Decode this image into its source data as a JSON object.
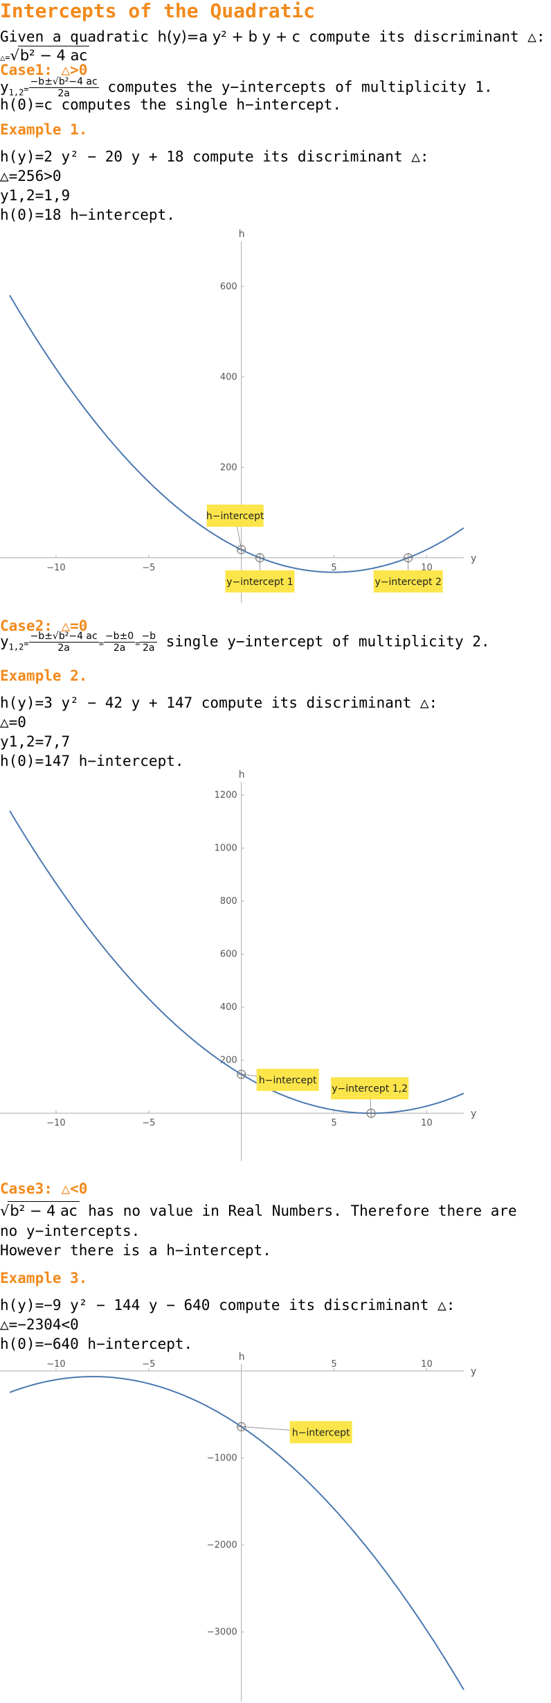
{
  "title": "Intercepts of the Quadratic",
  "intro": {
    "l1_a": "Given a quadratic ",
    "l1_eq": "h(y)=a y² + b y + c",
    "l1_b": " compute its discriminant △:",
    "disc_prefix": "△=",
    "disc_rad": "b² − 4 ac"
  },
  "case1": {
    "head": "Case1: △>0",
    "y12": "y",
    "sub": "1,2",
    "eq": "=",
    "num": "−b±√b²−4 ac",
    "den": "2a",
    "after": " computes the y−intercepts of multiplicity 1.",
    "h0": "h(0)=c computes the single h−intercept."
  },
  "ex1": {
    "head": "Example 1.",
    "l1": "h(y)=2 y² − 20 y + 18 compute its discriminant △:",
    "l2": "△=256>0",
    "l3": "y1,2=1,9",
    "l4": "h(0)=18  h−intercept."
  },
  "case2": {
    "head": "Case2: △=0",
    "num": "−b±√b²−4 ac",
    "den": "2a",
    "num2": "−b±0",
    "den2": "2a",
    "num3": "−b",
    "den3": "2a",
    "after": " single y−intercept of multiplicity 2."
  },
  "ex2": {
    "head": "Example 2.",
    "l1": "h(y)=3 y² − 42 y + 147 compute its discriminant △:",
    "l2": "△=0",
    "l3": "y1,2=7,7",
    "l4": "h(0)=147  h−intercept."
  },
  "case3": {
    "head": "Case3: △<0",
    "rad": "b² − 4 ac",
    "l1_after": " has no value in Real Numbers. Therefore there are",
    "l2": "no y−intercepts.",
    "l3": "However there is a h−intercept."
  },
  "ex3": {
    "head": "Example 3.",
    "l1": "h(y)=−9 y² − 144 y − 640 compute its discriminant △:",
    "l2": "△=−2304<0",
    "l3": "h(0)=−640  h−intercept."
  },
  "colors": {
    "accent": "#f28a1c",
    "curve": "#4a78b0",
    "callout": "#fbe54a"
  },
  "chart_data": [
    {
      "type": "line",
      "function": "h(y)=2y^2-20y+18",
      "coefficients": [
        2,
        -20,
        18
      ],
      "xlabel": "y",
      "ylabel": "h",
      "xlim": [
        -12.5,
        12
      ],
      "ylim": [
        -100,
        700
      ],
      "xticks": [
        "−10",
        "−5",
        "5",
        "10"
      ],
      "yticks": [
        "200",
        "400",
        "600"
      ],
      "ytick_values": [
        200,
        400,
        600
      ],
      "xtick_values": [
        -10,
        -5,
        5,
        10
      ],
      "intercepts": [
        {
          "label": "h−intercept",
          "x": 0,
          "y": 18
        },
        {
          "label": "y−intercept 1",
          "x": 1,
          "y": 0
        },
        {
          "label": "y−intercept 2",
          "x": 9,
          "y": 0
        }
      ]
    },
    {
      "type": "line",
      "function": "h(y)=3y^2-42y+147",
      "coefficients": [
        3,
        -42,
        147
      ],
      "xlabel": "y",
      "ylabel": "h",
      "xlim": [
        -12.5,
        12
      ],
      "ylim": [
        -180,
        1250
      ],
      "xticks": [
        "−10",
        "−5",
        "5",
        "10"
      ],
      "yticks": [
        "200",
        "400",
        "600",
        "800",
        "1000",
        "1200"
      ],
      "ytick_values": [
        200,
        400,
        600,
        800,
        1000,
        1200
      ],
      "xtick_values": [
        -10,
        -5,
        5,
        10
      ],
      "intercepts": [
        {
          "label": "h−intercept",
          "x": 0,
          "y": 147
        },
        {
          "label": "y−intercept 1,2",
          "x": 7,
          "y": 0
        }
      ]
    },
    {
      "type": "line",
      "function": "h(y)=-9y^2-144y-640",
      "coefficients": [
        -9,
        -144,
        -640
      ],
      "xlabel": "y",
      "ylabel": "h",
      "xlim": [
        -12.5,
        12
      ],
      "ylim": [
        -3800,
        80
      ],
      "xticks": [
        "−10",
        "−5",
        "5",
        "10"
      ],
      "yticks": [
        "−1000",
        "−2000",
        "−3000"
      ],
      "ytick_values": [
        -1000,
        -2000,
        -3000
      ],
      "xtick_values": [
        -10,
        -5,
        5,
        10
      ],
      "intercepts": [
        {
          "label": "h−intercept",
          "x": 0,
          "y": -640
        }
      ]
    }
  ]
}
